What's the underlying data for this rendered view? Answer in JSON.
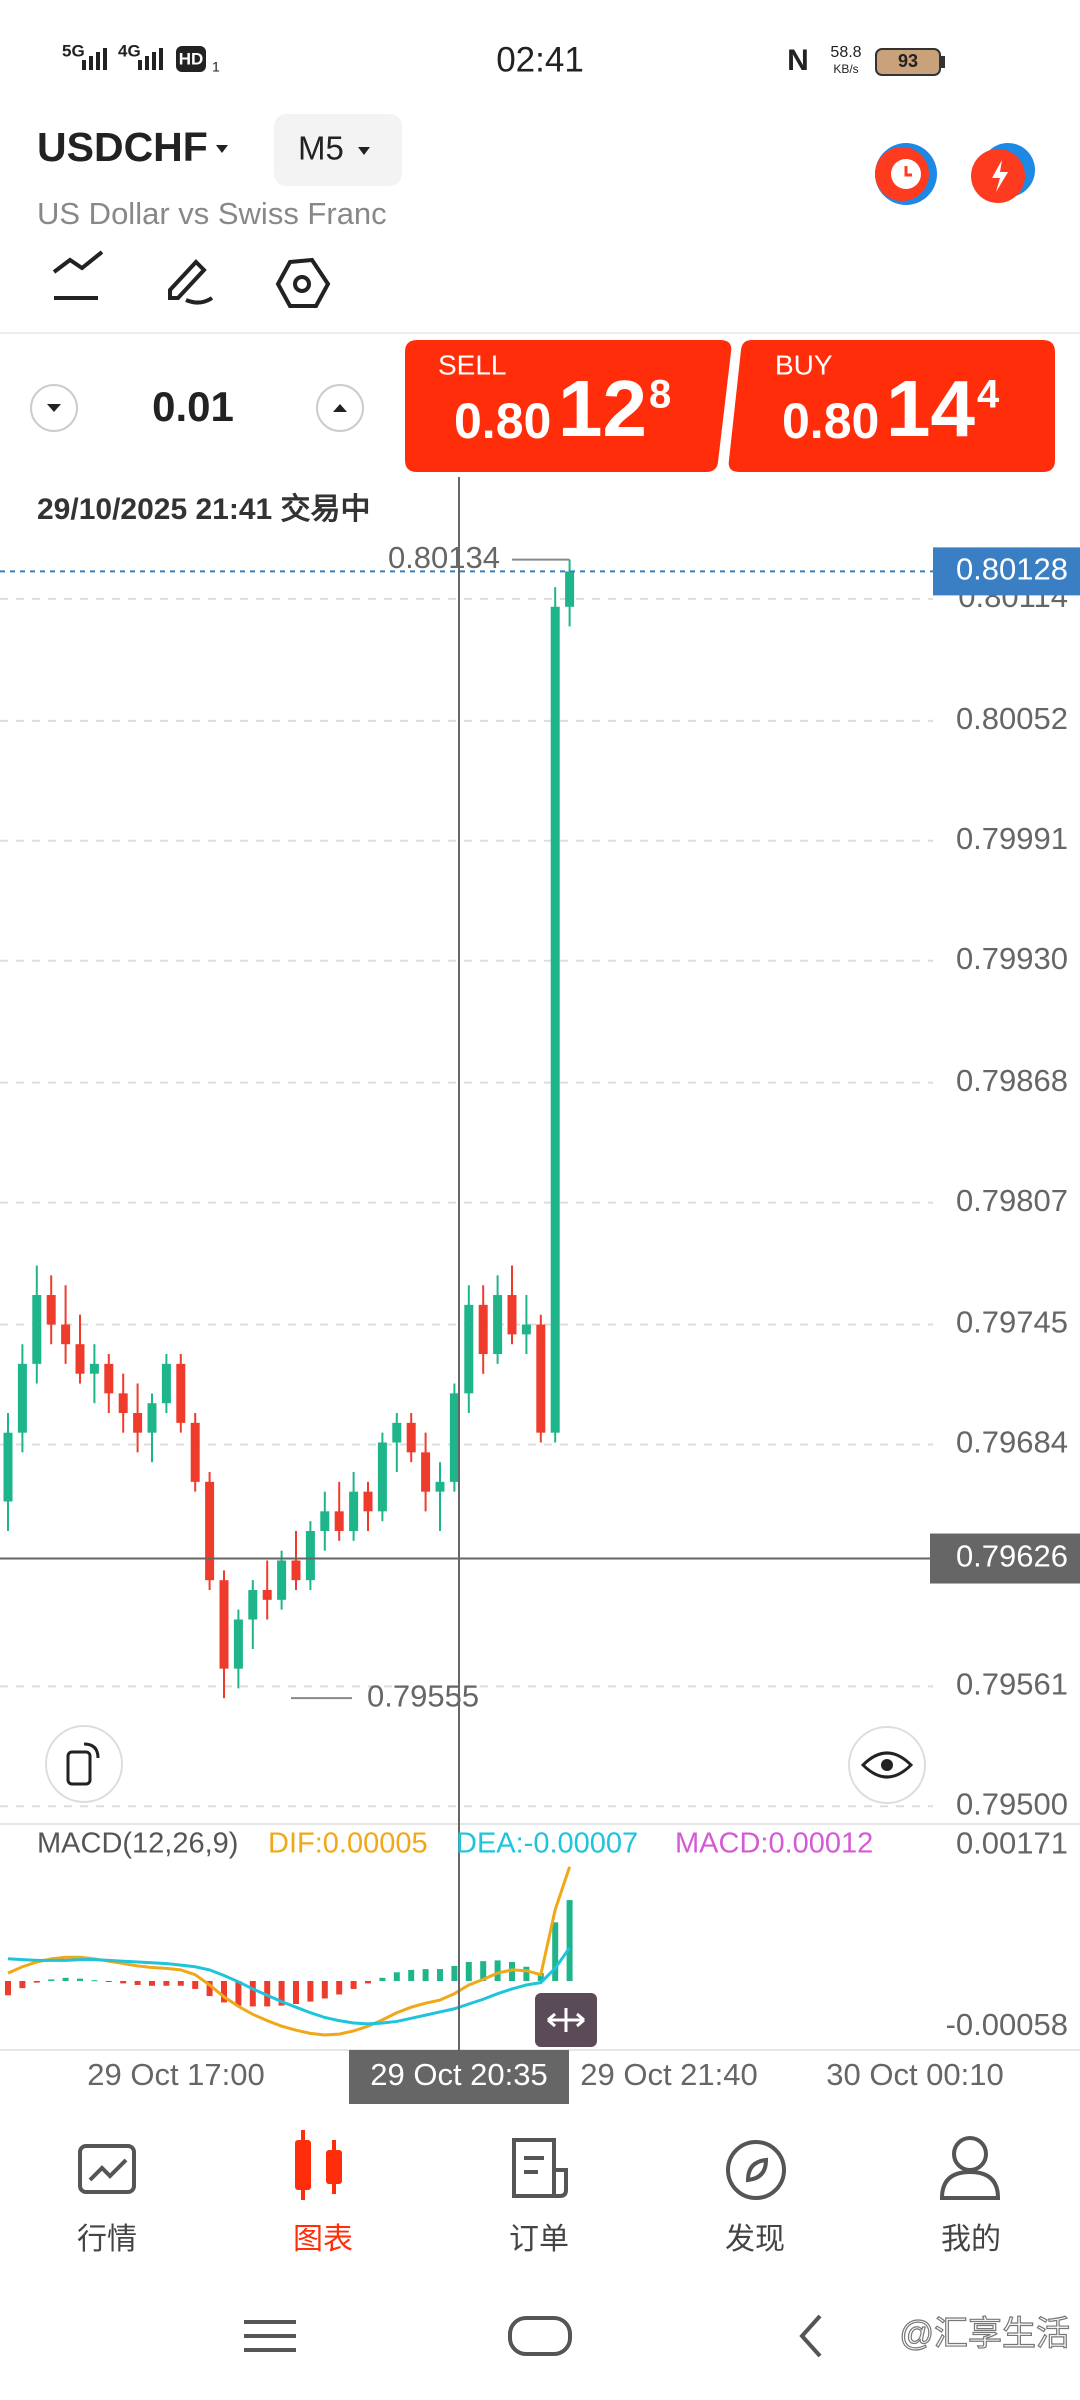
{
  "status_bar": {
    "signal_1": "5G",
    "signal_2": "4G",
    "hd": "HD",
    "sim": "1",
    "time": "02:41",
    "speed": "58.8",
    "speed_unit": "KB/s",
    "battery": "93"
  },
  "header": {
    "symbol": "USDCHF",
    "timeframe": "M5",
    "subtitle": "US Dollar vs Swiss Franc"
  },
  "trade": {
    "lot": "0.01",
    "sell": {
      "label": "SELL",
      "price_main": "0.80",
      "price_big": "12",
      "price_sup": "8"
    },
    "buy": {
      "label": "BUY",
      "price_main": "0.80",
      "price_big": "14",
      "price_sup": "4"
    }
  },
  "chart_data": {
    "type": "candlestick",
    "info": "29/10/2025 21:41 交易中",
    "ylim": [
      0.79491,
      0.80176
    ],
    "yticks": [
      {
        "value": 0.795,
        "label": "0.79500"
      },
      0.79561,
      0.79684,
      0.79745,
      0.79807,
      0.79868,
      {
        "value": 0.7993,
        "label": "0.79930"
      },
      0.79991,
      0.80052,
      0.80114
    ],
    "grid": true,
    "up_color": "#1fb58a",
    "down_color": "#ef3b2c",
    "current_price": 0.80128,
    "high_marker": 0.80134,
    "low_marker": 0.79555,
    "crosshair": {
      "price": 0.79626,
      "time": "29 Oct 20:35"
    },
    "xlabels": [
      "29 Oct 17:00",
      "29 Oct 21:40",
      "30 Oct 00:10"
    ],
    "candles": {
      "open": [
        0.79655,
        0.7969,
        0.79725,
        0.7976,
        0.79745,
        0.79735,
        0.7972,
        0.79725,
        0.7971,
        0.797,
        0.7969,
        0.79705,
        0.79725,
        0.79695,
        0.79665,
        0.79615,
        0.7957,
        0.79595,
        0.7961,
        0.79605,
        0.79625,
        0.79615,
        0.7964,
        0.7965,
        0.7964,
        0.7966,
        0.7965,
        0.79685,
        0.79695,
        0.7968,
        0.7966,
        0.79665,
        0.7971,
        0.79755,
        0.7973,
        0.7976,
        0.7974,
        0.79745,
        0.7969,
        0.8011
      ],
      "high": [
        0.797,
        0.79735,
        0.79775,
        0.7977,
        0.79765,
        0.7975,
        0.79735,
        0.7973,
        0.7972,
        0.79715,
        0.7971,
        0.7973,
        0.7973,
        0.797,
        0.7967,
        0.7962,
        0.796,
        0.79615,
        0.79625,
        0.7963,
        0.7964,
        0.79645,
        0.7966,
        0.79665,
        0.7967,
        0.79665,
        0.7969,
        0.797,
        0.797,
        0.7969,
        0.79675,
        0.79715,
        0.79765,
        0.79765,
        0.7977,
        0.79775,
        0.7976,
        0.7975,
        0.8012,
        0.80134
      ],
      "low": [
        0.7964,
        0.7968,
        0.79715,
        0.79735,
        0.79725,
        0.79715,
        0.79705,
        0.797,
        0.7969,
        0.7968,
        0.79675,
        0.797,
        0.7969,
        0.7966,
        0.7961,
        0.79555,
        0.7956,
        0.7958,
        0.79595,
        0.796,
        0.7961,
        0.7961,
        0.7963,
        0.79635,
        0.79635,
        0.7964,
        0.79645,
        0.7967,
        0.79675,
        0.7965,
        0.7964,
        0.7966,
        0.797,
        0.7972,
        0.79725,
        0.79735,
        0.7973,
        0.79685,
        0.79685,
        0.801
      ],
      "close": [
        0.7969,
        0.79725,
        0.7976,
        0.79745,
        0.79735,
        0.7972,
        0.79725,
        0.7971,
        0.797,
        0.7969,
        0.79705,
        0.79725,
        0.79695,
        0.79665,
        0.79615,
        0.7957,
        0.79595,
        0.7961,
        0.79605,
        0.79625,
        0.79615,
        0.7964,
        0.7965,
        0.7964,
        0.7966,
        0.7965,
        0.79685,
        0.79695,
        0.7968,
        0.7966,
        0.79665,
        0.7971,
        0.79755,
        0.7973,
        0.7976,
        0.7974,
        0.79745,
        0.7969,
        0.8011,
        0.80128
      ]
    },
    "macd": {
      "title": "MACD(12,26,9)",
      "dif_label": "DIF:0.00005",
      "dea_label": "DEA:-0.00007",
      "macd_label": "MACD:0.00012",
      "ylim": [
        -0.00087,
        0.00198
      ],
      "yticks": [
        0.00171,
        -0.00058
      ],
      "dif": {
        "color": "#f0a818",
        "values": [
          0.0001,
          0.00018,
          0.00024,
          0.00028,
          0.0003,
          0.0003,
          0.00028,
          0.00025,
          0.00022,
          0.00019,
          0.00017,
          0.00016,
          0.00014,
          8e-05,
          -5e-05,
          -0.0002,
          -0.00032,
          -0.00042,
          -0.0005,
          -0.00057,
          -0.00062,
          -0.00066,
          -0.00068,
          -0.00067,
          -0.00063,
          -0.00057,
          -0.00049,
          -0.0004,
          -0.00033,
          -0.00028,
          -0.00024,
          -0.00016,
          -5e-05,
          2e-05,
          0.0001,
          0.00014,
          0.00013,
          8e-05,
          0.0009,
          0.00144
        ]
      },
      "dea": {
        "color": "#1ec3dc",
        "values": [
          0.00028,
          0.00027,
          0.00026,
          0.00026,
          0.00026,
          0.00027,
          0.00027,
          0.00026,
          0.00025,
          0.00024,
          0.00023,
          0.00022,
          0.0002,
          0.00018,
          0.00014,
          7e-05,
          -1e-05,
          -0.0001,
          -0.00018,
          -0.00026,
          -0.00033,
          -0.0004,
          -0.00046,
          -0.0005,
          -0.00053,
          -0.00054,
          -0.00053,
          -0.00051,
          -0.00047,
          -0.00043,
          -0.00039,
          -0.00035,
          -0.00029,
          -0.00023,
          -0.00016,
          -0.0001,
          -5e-05,
          -2e-05,
          0.00016,
          0.00042
        ]
      },
      "hist": {
        "color": "#d45ad4",
        "values": [
          -0.00018,
          -9e-05,
          -2e-05,
          2e-05,
          4e-05,
          3e-05,
          1e-05,
          -1e-05,
          -3e-05,
          -5e-05,
          -6e-05,
          -6e-05,
          -6e-05,
          -0.0001,
          -0.00019,
          -0.00027,
          -0.00031,
          -0.00032,
          -0.00032,
          -0.00031,
          -0.00029,
          -0.00026,
          -0.00022,
          -0.00017,
          -0.0001,
          -3e-05,
          4e-05,
          0.00011,
          0.00014,
          0.00015,
          0.00015,
          0.00019,
          0.00024,
          0.00025,
          0.00026,
          0.00024,
          0.00018,
          0.0001,
          0.00074,
          0.00102
        ]
      }
    }
  },
  "nav": {
    "tabs": [
      "行情",
      "图表",
      "订单",
      "发现",
      "我的"
    ],
    "active": 1
  },
  "watermark": "@汇享生活"
}
